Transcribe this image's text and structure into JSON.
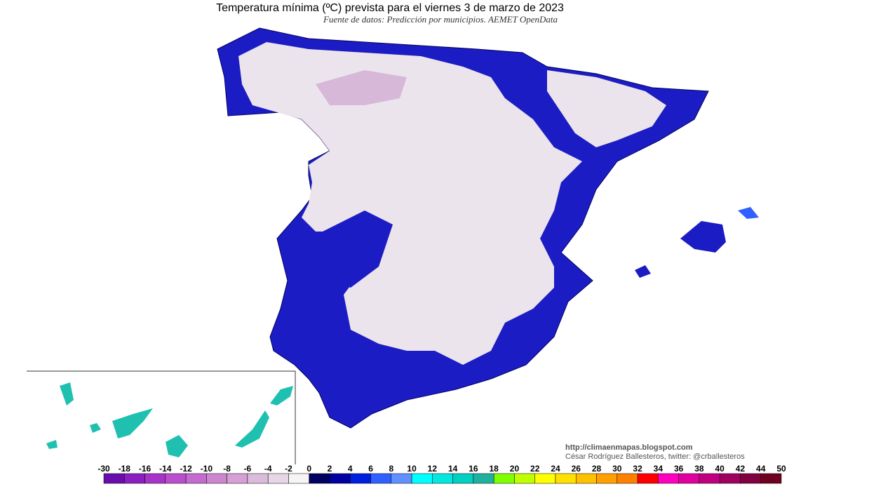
{
  "header": {
    "title": "Temperatura mínima (ºC) prevista para el viernes 3 de marzo de 2023",
    "subtitle": "Fuente de datos: Predicción por municipios. AEMET OpenData"
  },
  "credits": [
    "http://climaenmapas.blogspot.com",
    "César Rodríguez Ballesteros, twitter: @crballesteros"
  ],
  "colorbar": {
    "ticks": [
      -30,
      -18,
      -16,
      -14,
      -12,
      -10,
      -8,
      -6,
      -4,
      -2,
      0,
      2,
      4,
      6,
      8,
      10,
      12,
      14,
      16,
      18,
      20,
      22,
      24,
      26,
      28,
      30,
      32,
      34,
      36,
      38,
      40,
      42,
      44,
      50
    ],
    "colors": [
      "#6a0dad",
      "#8b1fc0",
      "#a733c9",
      "#b94fcf",
      "#c46bd0",
      "#cc86d0",
      "#d4a0d6",
      "#dbbbdc",
      "#e6d6e6",
      "#f7f4f7",
      "#000060",
      "#0000a0",
      "#0020e0",
      "#3060ff",
      "#6090ff",
      "#00ffff",
      "#00e8e0",
      "#00d0c0",
      "#20b0a0",
      "#80ff00",
      "#c0ff00",
      "#ffff00",
      "#ffe000",
      "#ffc000",
      "#ffa000",
      "#ff8000",
      "#ff0000",
      "#ff00c0",
      "#e000a0",
      "#c00080",
      "#a00060",
      "#800040",
      "#700020"
    ]
  }
}
